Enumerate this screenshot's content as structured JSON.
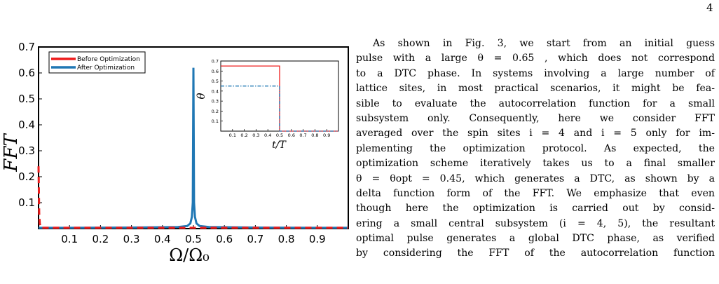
{
  "page_number": "4",
  "chart_data": [
    {
      "type": "line",
      "title": "",
      "xlabel": "Ω/Ω₀",
      "ylabel": "FFT",
      "xlim": [
        0,
        1
      ],
      "ylim": [
        0,
        0.7
      ],
      "xticks": [
        "0.1",
        "0.2",
        "0.3",
        "0.4",
        "0.5",
        "0.6",
        "0.7",
        "0.8",
        "0.9"
      ],
      "yticks": [
        "0.1",
        "0.2",
        "0.3",
        "0.4",
        "0.5",
        "0.6",
        "0.7"
      ],
      "legend_position": "top-left",
      "series": [
        {
          "name": "Before Optimization",
          "color": "#ee1c1c",
          "style": "solid",
          "x": [
            0.0,
            0.002,
            0.004,
            0.006,
            0.01,
            0.05,
            0.3,
            0.5,
            0.7,
            0.95,
            1.0
          ],
          "y": [
            0.24,
            0.06,
            0.02,
            0.005,
            0.003,
            0.003,
            0.003,
            0.003,
            0.003,
            0.003,
            0.003
          ]
        },
        {
          "name": "After Optimization",
          "color": "#1f77b4",
          "style": "dashed-on-peak",
          "x": [
            0.0,
            0.1,
            0.3,
            0.45,
            0.48,
            0.49,
            0.495,
            0.498,
            0.5,
            0.502,
            0.505,
            0.51,
            0.52,
            0.55,
            0.7,
            0.9,
            1.0
          ],
          "y": [
            0.003,
            0.003,
            0.004,
            0.006,
            0.01,
            0.02,
            0.045,
            0.1,
            0.62,
            0.1,
            0.045,
            0.02,
            0.01,
            0.006,
            0.004,
            0.003,
            0.003
          ]
        }
      ]
    },
    {
      "type": "line",
      "title": "",
      "xlabel": "t/T",
      "ylabel": "θ",
      "xlim": [
        0,
        1
      ],
      "ylim": [
        0,
        0.7
      ],
      "xticks": [
        "0.1",
        "0.2",
        "0.3",
        "0.4",
        "0.5",
        "0.6",
        "0.7",
        "0.8",
        "0.9"
      ],
      "yticks": [
        "0.1",
        "0.2",
        "0.3",
        "0.4",
        "0.5",
        "0.6",
        "0.7"
      ],
      "series": [
        {
          "name": "",
          "color": "#ee1c1c",
          "style": "solid",
          "x": [
            0.0,
            0.5,
            0.5,
            1.0
          ],
          "y": [
            0.65,
            0.65,
            0.0,
            0.0
          ]
        },
        {
          "name": "",
          "color": "#1f77b4",
          "style": "dashdot",
          "x": [
            0.0,
            0.5,
            0.5,
            1.0
          ],
          "y": [
            0.45,
            0.45,
            0.0,
            0.0
          ]
        }
      ]
    }
  ],
  "text": {
    "paragraph_lines": [
      "As shown in Fig. 3, we start from an initial guess",
      "pulse with a large θ = 0.65 , which does not correspond",
      "to a DTC phase. In systems involving a large number of",
      "lattice sites, in most practical scenarios, it might be fea-",
      "sible to evaluate the autocorrelation function for a small",
      "subsystem only.  Consequently, here we consider FFT",
      "averaged over the spin sites i = 4 and i = 5 only for im-",
      "plementing the optimization protocol. As expected, the",
      "optimization scheme iteratively takes us to a final smaller",
      "θ = θopt = 0.45, which generates a DTC, as shown by a",
      "delta function form of the FFT. We emphasize that even",
      "though here the optimization is carried out by consid-",
      "ering a small central subsystem (i = 4, 5), the resultant",
      "optimal pulse generates a global DTC phase, as verified",
      "by considering the FFT of the autocorrelation function"
    ]
  }
}
